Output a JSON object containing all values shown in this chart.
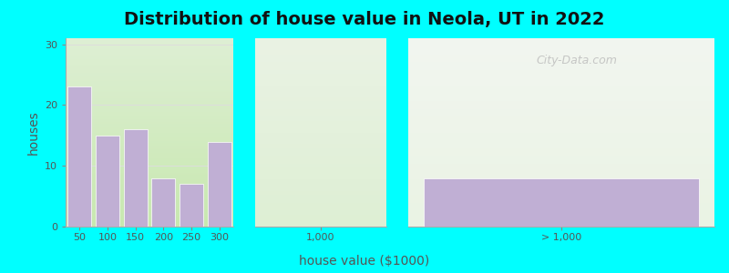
{
  "title": "Distribution of house value in Neola, UT in 2022",
  "xlabel": "house value ($1000)",
  "ylabel": "houses",
  "bar_color": "#c0afd4",
  "background_outer": "#00ffff",
  "ylim": [
    0,
    31
  ],
  "yticks": [
    0,
    10,
    20,
    30
  ],
  "bar_heights": [
    23,
    15,
    16,
    8,
    7,
    14
  ],
  "special_bar_height": 8,
  "watermark_text": "City-Data.com",
  "title_fontsize": 14,
  "axis_label_fontsize": 10,
  "tick_fontsize": 8,
  "grid_color": "#dddddd",
  "text_color": "#555555"
}
